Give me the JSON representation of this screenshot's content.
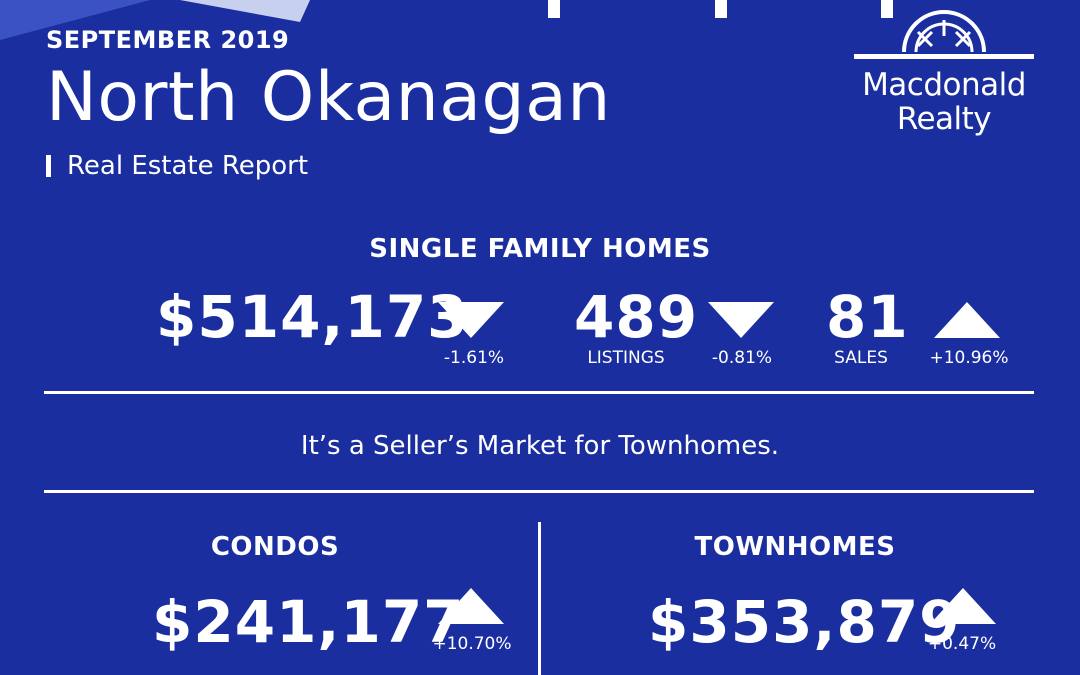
{
  "header": {
    "month": "SEPTEMBER 2019",
    "city": "North Okanagan",
    "subtitle": "Real Estate Report"
  },
  "logo": {
    "line1": "Macdonald",
    "line2": "Realty",
    "icon": "sunrise-arch-icon"
  },
  "single_family": {
    "title": "SINGLE FAMILY HOMES",
    "price": "$514,173",
    "price_change": "-1.61%",
    "price_trend": "down",
    "listings": "489",
    "listings_label": "LISTINGS",
    "listings_change": "-0.81%",
    "listings_trend": "down",
    "sales": "81",
    "sales_label": "SALES",
    "sales_change": "+10.96%",
    "sales_trend": "up"
  },
  "market_message": "It’s a Seller’s Market for Townhomes.",
  "condos": {
    "title": "CONDOS",
    "price": "$241,177",
    "price_change": "+10.70%",
    "price_trend": "up"
  },
  "townhomes": {
    "title": "TOWNHOMES",
    "price": "$353,879",
    "price_change": "+0.47%",
    "price_trend": "up"
  },
  "colors": {
    "background": "#1a2ea0",
    "foreground": "#ffffff"
  }
}
